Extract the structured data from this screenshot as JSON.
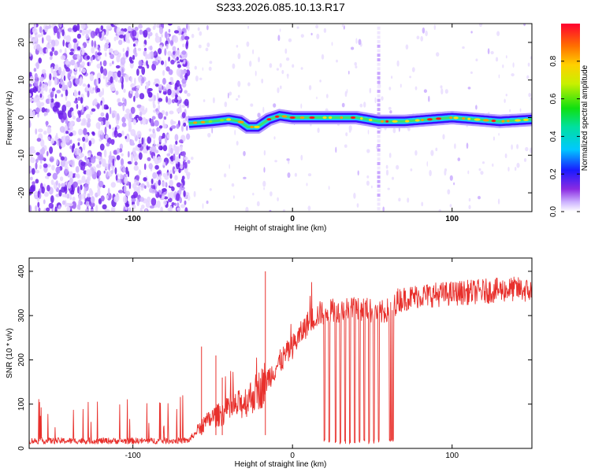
{
  "title": "S233.2026.085.10.13.R17",
  "colors": {
    "line": "#e8302c",
    "track_low": "#3a0dff",
    "track_mid": "#19c8ff",
    "track_high": "#ff1a1a",
    "noise": "#7a2cf0"
  },
  "chart_data": [
    {
      "type": "heatmap",
      "title": "S233.2026.085.10.13.R17",
      "xlabel": "Height of straight line (km)",
      "ylabel": "Frequency (Hz)",
      "xlim": [
        -165,
        150
      ],
      "ylim": [
        -25,
        25
      ],
      "x_ticks": [
        -100,
        0,
        100
      ],
      "y_ticks": [
        -20,
        -10,
        0,
        10,
        20
      ],
      "x_tick_labels": [
        "-100",
        "0",
        "100"
      ],
      "y_tick_labels": [
        "-20",
        "-10",
        "0",
        "10",
        "20"
      ],
      "signal_onset_km": -65,
      "broadband_spike_km": 54,
      "track_frequency_hz": {
        "x": [
          -65,
          -50,
          -40,
          -33,
          -28,
          -22,
          -15,
          -8,
          0,
          20,
          40,
          54,
          70,
          100,
          130,
          150
        ],
        "y": [
          -1.5,
          -1,
          -0.5,
          -1,
          -2.5,
          -2.5,
          -0.5,
          0.5,
          0,
          0,
          0,
          -1,
          -1,
          0,
          -1,
          -0.5
        ]
      },
      "colorbar": {
        "label": "Normalized spectral amplitude",
        "range": [
          0,
          1
        ],
        "ticks": [
          0.0,
          0.2,
          0.4,
          0.6,
          0.8
        ],
        "tick_labels": [
          "0.0",
          "0.2",
          "0.4",
          "0.6",
          "0.8"
        ]
      }
    },
    {
      "type": "line",
      "xlabel": "Height of straight line (km)",
      "ylabel": "SNR (10 * v/v)",
      "xlim": [
        -165,
        150
      ],
      "ylim": [
        0,
        430
      ],
      "x_ticks": [
        -100,
        0,
        100
      ],
      "y_ticks": [
        0,
        100,
        200,
        300,
        400
      ],
      "x_tick_labels": [
        "-100",
        "0",
        "100"
      ],
      "y_tick_labels": [
        "0",
        "100",
        "200",
        "300",
        "400"
      ],
      "series": [
        {
          "name": "SNR",
          "x": [
            -165,
            -140,
            -120,
            -100,
            -80,
            -65,
            -57,
            -50,
            -40,
            -30,
            -20,
            -10,
            0,
            10,
            17,
            25,
            40,
            55,
            62,
            66,
            80,
            100,
            120,
            140,
            150
          ],
          "y": [
            17,
            17,
            17,
            17,
            17,
            18,
            50,
            70,
            85,
            105,
            135,
            185,
            230,
            285,
            305,
            310,
            320,
            305,
            315,
            335,
            345,
            350,
            355,
            360,
            355
          ]
        }
      ],
      "dropouts_km": [
        20,
        23,
        27,
        30,
        33,
        36,
        39,
        42,
        45,
        48,
        51,
        54,
        61,
        62,
        63
      ],
      "spikes": {
        "x": [
          -57,
          -48,
          -44,
          -17
        ],
        "y": [
          230,
          210,
          160,
          400
        ]
      }
    }
  ]
}
